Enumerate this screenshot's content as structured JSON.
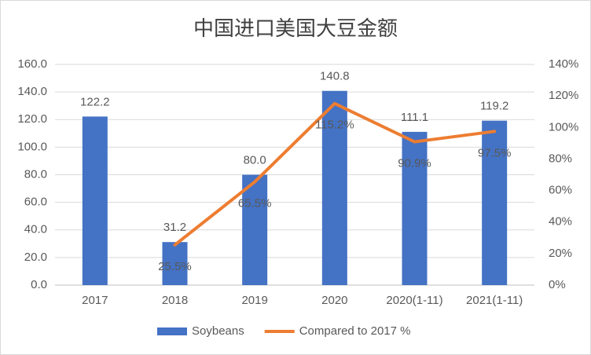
{
  "chart_data": {
    "type": "bar",
    "title": "中国进口美国大豆金额",
    "categories": [
      "2017",
      "2018",
      "2019",
      "2020",
      "2020(1-11)",
      "2021(1-11)"
    ],
    "series": [
      {
        "name": "Soybeans",
        "type": "bar",
        "color": "#4472c4",
        "values": [
          122.2,
          31.2,
          80.0,
          140.8,
          111.1,
          119.2
        ],
        "value_labels": [
          "122.2",
          "31.2",
          "80.0",
          "140.8",
          "111.1",
          "119.2"
        ]
      },
      {
        "name": "Compared to 2017 %",
        "type": "line",
        "axis": "y2",
        "color": "#ed7d31",
        "values": [
          null,
          25.5,
          65.5,
          115.2,
          90.9,
          97.5
        ],
        "value_labels": [
          null,
          "25.5%",
          "65.5%",
          "115.2%",
          "90.9%",
          "97.5%"
        ]
      }
    ],
    "ylim": [
      0,
      160
    ],
    "yticks": [
      {
        "value": 0,
        "label": "0.0"
      },
      {
        "value": 20,
        "label": "20.0"
      },
      {
        "value": 40,
        "label": "40.0"
      },
      {
        "value": 60,
        "label": "60.0"
      },
      {
        "value": 80,
        "label": "80.0"
      },
      {
        "value": 100,
        "label": "100.0"
      },
      {
        "value": 120,
        "label": "120.0"
      },
      {
        "value": 140,
        "label": "140.0"
      },
      {
        "value": 160,
        "label": "160.0"
      }
    ],
    "y2lim": [
      0,
      140
    ],
    "y2ticks": [
      {
        "value": 0,
        "label": "0%"
      },
      {
        "value": 20,
        "label": "20%"
      },
      {
        "value": 40,
        "label": "40%"
      },
      {
        "value": 60,
        "label": "60%"
      },
      {
        "value": 80,
        "label": "80%"
      },
      {
        "value": 100,
        "label": "100%"
      },
      {
        "value": 120,
        "label": "120%"
      },
      {
        "value": 140,
        "label": "140%"
      }
    ],
    "grid": true,
    "legend": "bottom"
  }
}
